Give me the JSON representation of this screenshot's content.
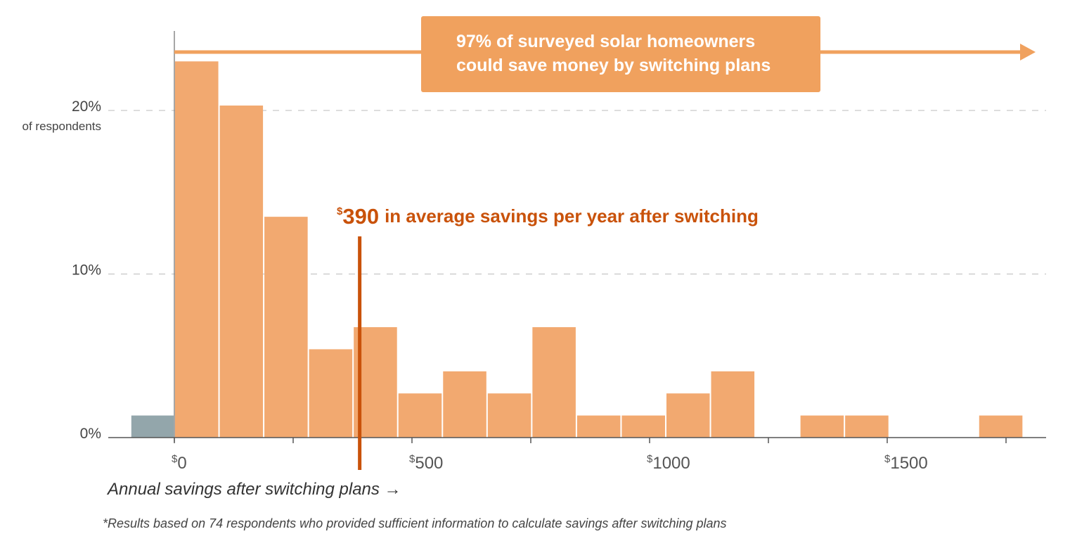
{
  "chart_data": {
    "type": "bar",
    "xlabel": "Annual savings after switching plans →",
    "y_ticks": [
      {
        "value": 0,
        "label": "0%"
      },
      {
        "value": 10,
        "label": "10%"
      },
      {
        "value": 20,
        "label": "20%"
      }
    ],
    "y_unit_label": "of respondents",
    "ylim": [
      0,
      20
    ],
    "x_ticks": [
      {
        "value": 0,
        "label": "0",
        "prefix": "$"
      },
      {
        "value": 500,
        "label": "500",
        "prefix": "$"
      },
      {
        "value": 1000,
        "label": "1000",
        "prefix": "$"
      },
      {
        "value": 1500,
        "label": "1500",
        "prefix": "$"
      }
    ],
    "x_minor_tick_step": 250,
    "grid": "horizontal dashed",
    "bins": [
      {
        "x0": -92,
        "x1": 0,
        "value": 1.35,
        "color": "#93a6ab"
      },
      {
        "x0": 0,
        "x1": 94,
        "value": 23.0,
        "color": "#f2a970"
      },
      {
        "x0": 94,
        "x1": 188,
        "value": 20.3,
        "color": "#f2a970"
      },
      {
        "x0": 188,
        "x1": 282,
        "value": 13.5,
        "color": "#f2a970"
      },
      {
        "x0": 282,
        "x1": 376,
        "value": 5.4,
        "color": "#f2a970"
      },
      {
        "x0": 376,
        "x1": 470,
        "value": 6.75,
        "color": "#f2a970"
      },
      {
        "x0": 470,
        "x1": 564,
        "value": 2.7,
        "color": "#f2a970"
      },
      {
        "x0": 564,
        "x1": 658,
        "value": 4.05,
        "color": "#f2a970"
      },
      {
        "x0": 658,
        "x1": 752,
        "value": 2.7,
        "color": "#f2a970"
      },
      {
        "x0": 752,
        "x1": 846,
        "value": 6.75,
        "color": "#f2a970"
      },
      {
        "x0": 846,
        "x1": 940,
        "value": 1.35,
        "color": "#f2a970"
      },
      {
        "x0": 940,
        "x1": 1034,
        "value": 1.35,
        "color": "#f2a970"
      },
      {
        "x0": 1034,
        "x1": 1128,
        "value": 2.7,
        "color": "#f2a970"
      },
      {
        "x0": 1128,
        "x1": 1222,
        "value": 4.05,
        "color": "#f2a970"
      },
      {
        "x0": 1316,
        "x1": 1410,
        "value": 1.35,
        "color": "#f2a970"
      },
      {
        "x0": 1410,
        "x1": 1504,
        "value": 1.35,
        "color": "#f2a970"
      },
      {
        "x0": 1692,
        "x1": 1786,
        "value": 1.35,
        "color": "#f2a970"
      }
    ],
    "average": {
      "value": 390,
      "prefix": "$",
      "display": "390",
      "label": "in average savings per year after switching",
      "color": "#c9520a"
    },
    "callout": {
      "lines": [
        "97% of surveyed solar homeowners",
        "could save money by switching plans"
      ],
      "color": "#f0a15e"
    },
    "footnote": "*Results based on 74 respondents who provided sufficient information to calculate savings after switching plans",
    "colors": {
      "savings_bar": "#f2a970",
      "loss_bar": "#93a6ab",
      "average_line": "#c9520a",
      "arrow": "#f0a15e"
    }
  }
}
